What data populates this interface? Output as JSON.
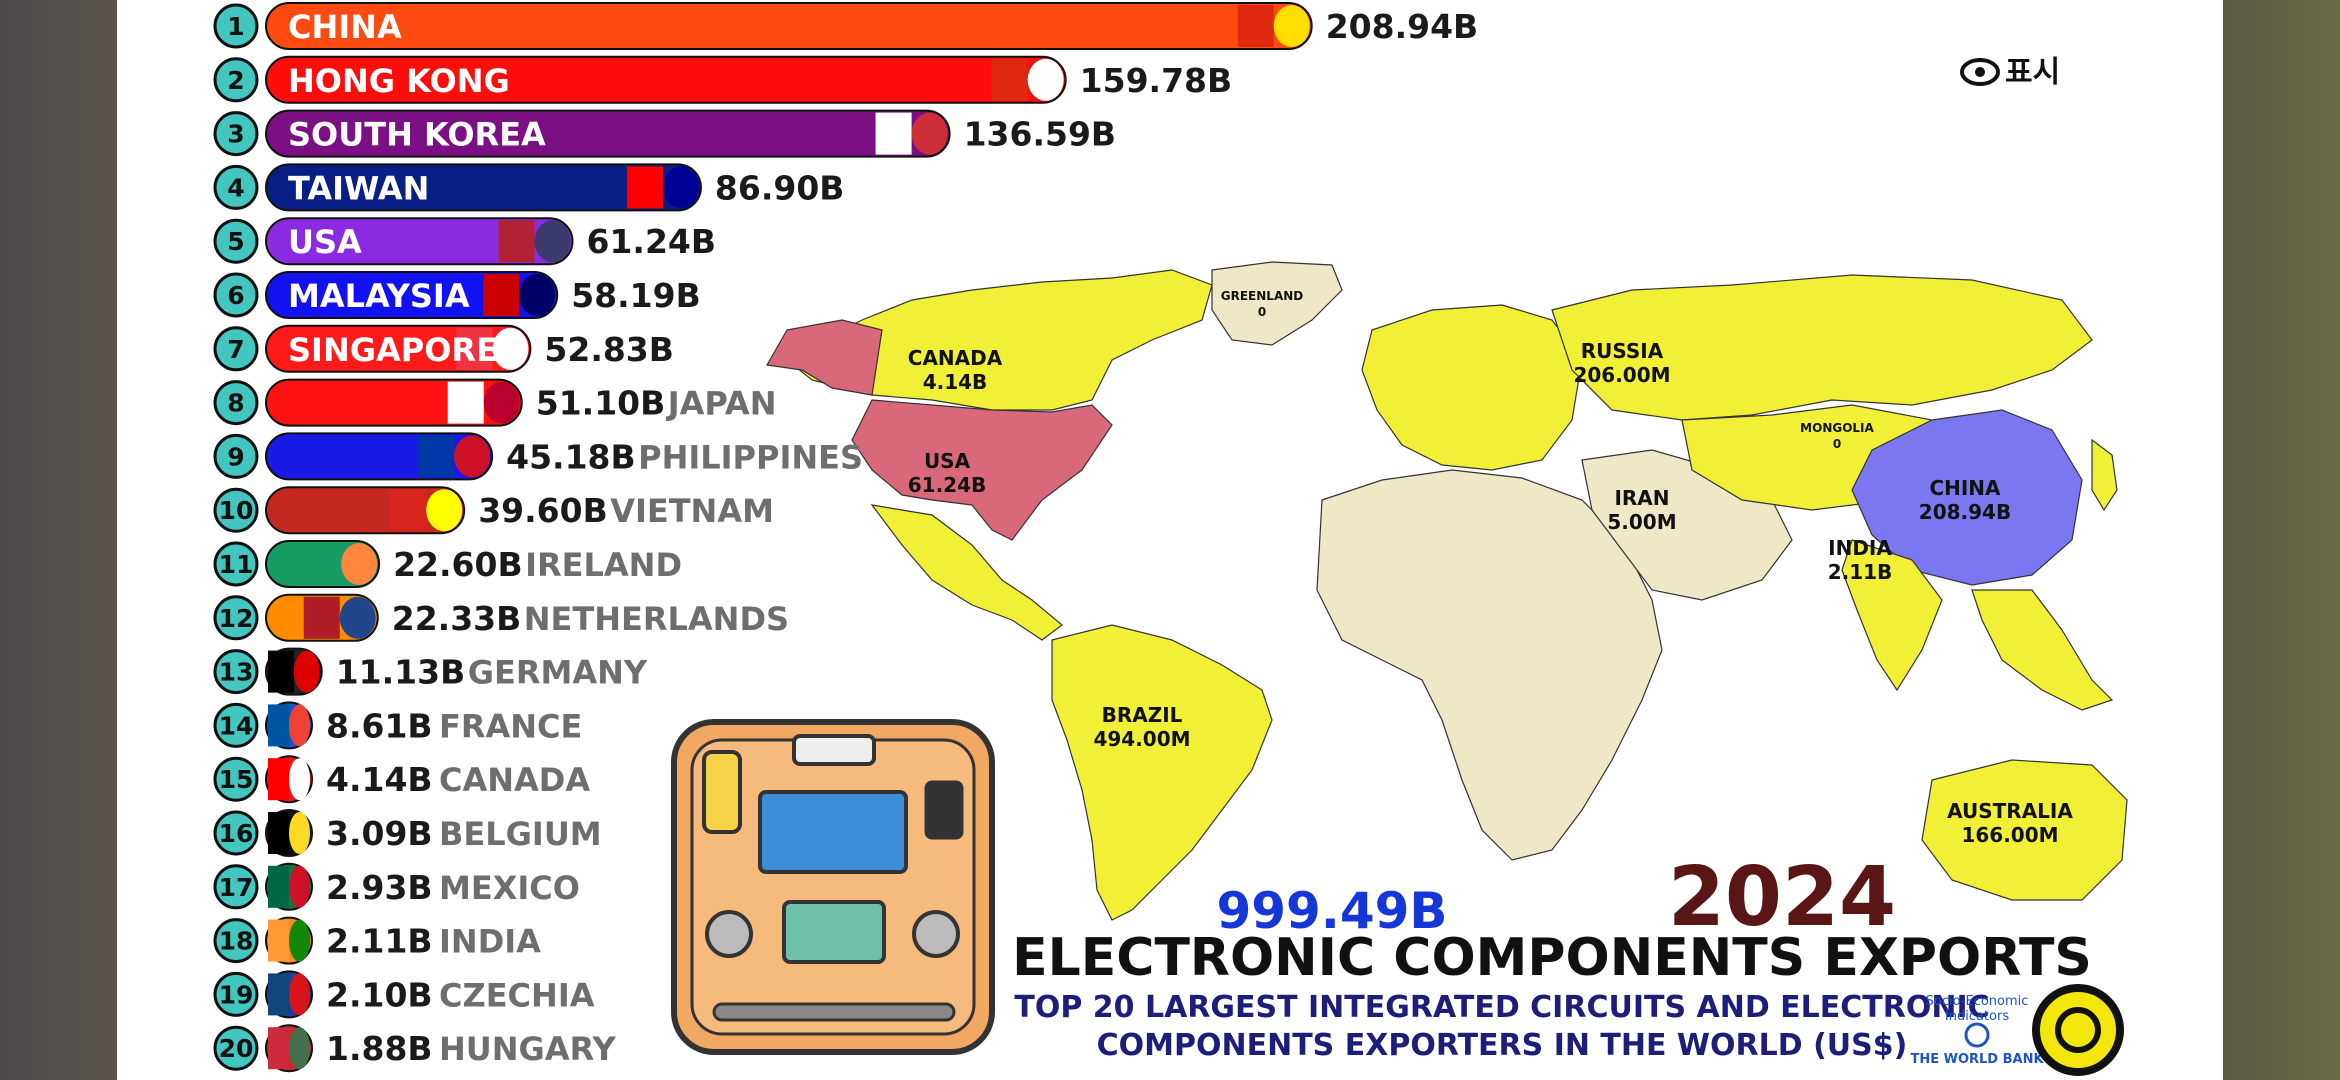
{
  "chart_data": {
    "type": "bar",
    "orientation": "horizontal",
    "title": "ELECTRONIC COMPONENTS EXPORTS",
    "subtitle_line1": "TOP 20 LARGEST INTEGRATED CIRCUITS AND ELECTRONIC",
    "subtitle_line2": "COMPONENTS EXPORTERS IN THE WORLD (US$)",
    "year": "2024",
    "total": "999.49B",
    "unit": "B",
    "xlim": [
      0,
      209
    ],
    "bars": [
      {
        "rank": "1",
        "name": "CHINA",
        "value": 208.94,
        "value_label": "208.94B",
        "color": "#ff4a12",
        "flag": "china"
      },
      {
        "rank": "2",
        "name": "HONG KONG",
        "value": 159.78,
        "value_label": "159.78B",
        "color": "#ff0d0d",
        "flag": "hongkong"
      },
      {
        "rank": "3",
        "name": "SOUTH KOREA",
        "value": 136.59,
        "value_label": "136.59B",
        "color": "#7b0f84",
        "flag": "korea"
      },
      {
        "rank": "4",
        "name": "TAIWAN",
        "value": 86.9,
        "value_label": "86.90B",
        "color": "#0a1f86",
        "flag": "taiwan"
      },
      {
        "rank": "5",
        "name": "USA",
        "value": 61.24,
        "value_label": "61.24B",
        "color": "#8a2be2",
        "flag": "usa"
      },
      {
        "rank": "6",
        "name": "MALAYSIA",
        "value": 58.19,
        "value_label": "58.19B",
        "color": "#1212f0",
        "flag": "malaysia"
      },
      {
        "rank": "7",
        "name": "SINGAPORE",
        "value": 52.83,
        "value_label": "52.83B",
        "color": "#ff1a1a",
        "flag": "singapore"
      },
      {
        "rank": "8",
        "name": "JAPAN",
        "value": 51.1,
        "value_label": "51.10B",
        "color": "#ff1212",
        "flag": "japan"
      },
      {
        "rank": "9",
        "name": "PHILIPPINES",
        "value": 45.18,
        "value_label": "45.18B",
        "color": "#1a1ae6",
        "flag": "philippines"
      },
      {
        "rank": "10",
        "name": "VIETNAM",
        "value": 39.6,
        "value_label": "39.60B",
        "color": "#c42a22",
        "flag": "vietnam"
      },
      {
        "rank": "11",
        "name": "IRELAND",
        "value": 22.6,
        "value_label": "22.60B",
        "color": "#169b62",
        "flag": "ireland"
      },
      {
        "rank": "12",
        "name": "NETHERLANDS",
        "value": 22.33,
        "value_label": "22.33B",
        "color": "#ff8c00",
        "flag": "netherlands"
      },
      {
        "rank": "13",
        "name": "GERMANY",
        "value": 11.13,
        "value_label": "11.13B",
        "color": "#222222",
        "flag": "germany"
      },
      {
        "rank": "14",
        "name": "FRANCE",
        "value": 8.61,
        "value_label": "8.61B",
        "color": "#1f4fd0",
        "flag": "france"
      },
      {
        "rank": "15",
        "name": "CANADA",
        "value": 4.14,
        "value_label": "4.14B",
        "color": "#e01e1e",
        "flag": "canada"
      },
      {
        "rank": "16",
        "name": "BELGIUM",
        "value": 3.09,
        "value_label": "3.09B",
        "color": "#111111",
        "flag": "belgium"
      },
      {
        "rank": "17",
        "name": "MEXICO",
        "value": 2.93,
        "value_label": "2.93B",
        "color": "#0e7a3a",
        "flag": "mexico"
      },
      {
        "rank": "18",
        "name": "INDIA",
        "value": 2.11,
        "value_label": "2.11B",
        "color": "#ff8a1e",
        "flag": "india"
      },
      {
        "rank": "19",
        "name": "CZECHIA",
        "value": 2.1,
        "value_label": "2.10B",
        "color": "#1e3fa0",
        "flag": "czechia"
      },
      {
        "rank": "20",
        "name": "HUNGARY",
        "value": 1.88,
        "value_label": "1.88B",
        "color": "#cc2b2b",
        "flag": "hungary"
      }
    ],
    "map_labels": [
      {
        "name": "CANADA",
        "value": "4.14B"
      },
      {
        "name": "USA",
        "value": "61.24B"
      },
      {
        "name": "RUSSIA",
        "value": "206.00M"
      },
      {
        "name": "CHINA",
        "value": "208.94B"
      },
      {
        "name": "BRAZIL",
        "value": "494.00M"
      },
      {
        "name": "AUSTRALIA",
        "value": "166.00M"
      },
      {
        "name": "IRAN",
        "value": "5.00M"
      },
      {
        "name": "INDIA",
        "value": "2.11B"
      },
      {
        "name": "MONGOLIA",
        "value": "0"
      },
      {
        "name": "GREENLAND",
        "value": "0"
      }
    ]
  },
  "overlay": {
    "watch_label": "표시"
  },
  "source": {
    "line1": "Socio-Economic",
    "line2": "Indicators",
    "org": "THE WORLD BANK"
  },
  "colors": {
    "bg_map": "#ffffff",
    "ocean": "#ffffff",
    "land_yellow": "#f1f036",
    "land_beige": "#efe8c6",
    "usa_fill": "#d9697a",
    "china_fill": "#7a77f0",
    "rank_circle": "#43c6c0",
    "value_text": "#1a1a1a",
    "country_gray": "#6e6e6e",
    "total_blue": "#1537d8",
    "year_color": "#5a1515",
    "title_color": "#111111",
    "subtitle_color": "#1d1d7a"
  }
}
